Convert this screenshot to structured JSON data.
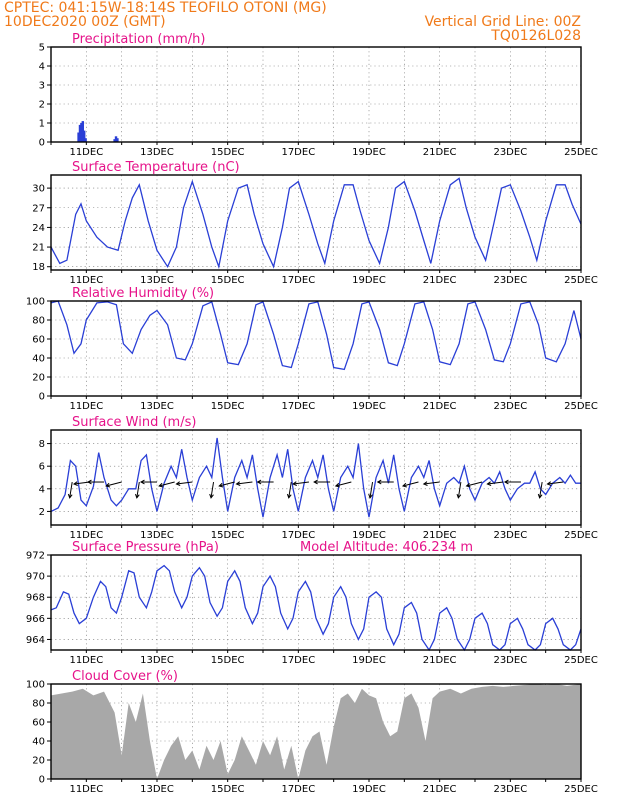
{
  "header": {
    "line1_left": "CPTEC:   041:15W-18:14S   TEOFILO OTONI (MG)",
    "line2_left": "10DEC2020 00Z (GMT)",
    "line2_right": "Vertical Grid Line: 00Z",
    "line3_right": "TQ0126L028"
  },
  "colors": {
    "header": "#f07a1a",
    "title": "#e6138a",
    "series": "#2a3fd6",
    "cloud": "#a8a8a8"
  },
  "x_axis": {
    "ticks": [
      "11DEC",
      "13DEC",
      "15DEC",
      "17DEC",
      "19DEC",
      "21DEC",
      "23DEC",
      "25DEC"
    ],
    "tick_days": [
      11,
      13,
      15,
      17,
      19,
      21,
      23,
      25
    ],
    "range_days": [
      10,
      25
    ]
  },
  "chart_data": [
    {
      "type": "bar",
      "title": "Precipitation (mm/h)",
      "ylim": [
        0,
        5
      ],
      "yticks": [
        0,
        1,
        2,
        3,
        4,
        5
      ],
      "x_days": [
        10.78,
        10.82,
        10.86,
        10.9,
        10.94,
        10.98,
        11.8,
        11.84,
        11.88
      ],
      "values": [
        0.5,
        0.9,
        1.0,
        1.1,
        0.6,
        0.2,
        0.15,
        0.3,
        0.2
      ]
    },
    {
      "type": "line",
      "title": "Surface Temperature (nC)",
      "ylim": [
        17.5,
        32
      ],
      "yticks": [
        18,
        21,
        24,
        27,
        30
      ],
      "x_days": [
        10.0,
        10.25,
        10.45,
        10.7,
        10.85,
        11.0,
        11.3,
        11.6,
        11.9,
        12.1,
        12.3,
        12.5,
        12.75,
        13.0,
        13.3,
        13.55,
        13.75,
        14.0,
        14.3,
        14.55,
        14.75,
        15.0,
        15.3,
        15.55,
        15.75,
        16.0,
        16.3,
        16.55,
        16.75,
        17.0,
        17.3,
        17.55,
        17.75,
        18.0,
        18.3,
        18.55,
        18.75,
        19.0,
        19.3,
        19.55,
        19.75,
        20.0,
        20.3,
        20.55,
        20.75,
        21.0,
        21.3,
        21.55,
        21.75,
        22.0,
        22.3,
        22.55,
        22.75,
        23.0,
        23.3,
        23.55,
        23.75,
        24.0,
        24.3,
        24.55,
        24.75,
        25.0
      ],
      "values": [
        21,
        18.5,
        19,
        26,
        27.6,
        25,
        22.5,
        21,
        20.5,
        25,
        28.5,
        30.5,
        25,
        20.5,
        18,
        21,
        27,
        31,
        26,
        21,
        18,
        25,
        30,
        30.5,
        26,
        21.5,
        18,
        24,
        30,
        31,
        26,
        21.5,
        18.5,
        25,
        30.5,
        30.5,
        26.5,
        22,
        18.5,
        24,
        30,
        31,
        26.5,
        22,
        18.5,
        25,
        30.5,
        31.5,
        27,
        22.5,
        19,
        25,
        30,
        30.5,
        26.5,
        22.5,
        19,
        25,
        30.5,
        30.5,
        27.5,
        24.5
      ]
    },
    {
      "type": "line",
      "title": "Relative Humidity (%)",
      "ylim": [
        0,
        100
      ],
      "yticks": [
        0,
        20,
        40,
        60,
        80,
        100
      ],
      "x_days": [
        10.0,
        10.2,
        10.45,
        10.65,
        10.85,
        11.0,
        11.3,
        11.6,
        11.85,
        12.05,
        12.3,
        12.55,
        12.8,
        13.0,
        13.3,
        13.55,
        13.8,
        14.0,
        14.3,
        14.55,
        14.8,
        15.0,
        15.3,
        15.55,
        15.8,
        16.0,
        16.3,
        16.55,
        16.8,
        17.0,
        17.3,
        17.55,
        17.8,
        18.0,
        18.3,
        18.55,
        18.8,
        19.0,
        19.3,
        19.55,
        19.8,
        20.0,
        20.3,
        20.55,
        20.8,
        21.0,
        21.3,
        21.55,
        21.8,
        22.0,
        22.3,
        22.55,
        22.8,
        23.0,
        23.3,
        23.55,
        23.8,
        24.0,
        24.3,
        24.55,
        24.8,
        25.0
      ],
      "values": [
        98,
        100,
        75,
        45,
        55,
        80,
        98,
        99,
        96,
        55,
        45,
        70,
        85,
        90,
        75,
        40,
        38,
        55,
        95,
        99,
        65,
        35,
        33,
        55,
        96,
        99,
        65,
        32,
        30,
        55,
        97,
        99,
        65,
        30,
        28,
        55,
        97,
        99,
        70,
        35,
        32,
        55,
        97,
        99,
        70,
        36,
        33,
        55,
        97,
        99,
        70,
        38,
        36,
        55,
        97,
        99,
        75,
        40,
        36,
        55,
        90,
        60
      ]
    },
    {
      "type": "line",
      "title": "Surface Wind (m/s)",
      "ylim": [
        0.8,
        9.2
      ],
      "yticks": [
        2,
        4,
        6,
        8
      ],
      "x_days": [
        10.0,
        10.2,
        10.4,
        10.55,
        10.7,
        10.85,
        11.0,
        11.2,
        11.35,
        11.5,
        11.7,
        11.85,
        12.0,
        12.2,
        12.4,
        12.55,
        12.7,
        12.85,
        13.0,
        13.2,
        13.4,
        13.55,
        13.7,
        13.85,
        14.0,
        14.2,
        14.4,
        14.55,
        14.7,
        14.85,
        15.0,
        15.2,
        15.4,
        15.55,
        15.7,
        15.85,
        16.0,
        16.2,
        16.4,
        16.55,
        16.7,
        16.85,
        17.0,
        17.2,
        17.4,
        17.55,
        17.7,
        17.85,
        18.0,
        18.2,
        18.4,
        18.55,
        18.7,
        18.85,
        19.0,
        19.2,
        19.4,
        19.55,
        19.7,
        19.85,
        20.0,
        20.2,
        20.4,
        20.55,
        20.7,
        20.85,
        21.0,
        21.2,
        21.4,
        21.55,
        21.7,
        21.85,
        22.0,
        22.2,
        22.4,
        22.55,
        22.7,
        22.85,
        23.0,
        23.2,
        23.4,
        23.55,
        23.7,
        23.85,
        24.0,
        24.2,
        24.4,
        24.55,
        24.7,
        24.85,
        25.0
      ],
      "values": [
        2,
        2.3,
        3.5,
        6.5,
        6,
        3,
        2.5,
        4.2,
        7.2,
        5,
        3,
        2.5,
        3,
        4,
        4,
        6.5,
        7,
        4,
        2,
        4.5,
        6,
        5,
        7.5,
        5,
        3,
        5,
        6,
        5,
        8.5,
        5,
        2,
        5,
        6.5,
        5,
        7,
        4,
        1.5,
        5,
        7,
        5,
        7.5,
        4,
        2,
        5,
        6.5,
        5,
        7,
        4,
        2,
        5,
        6,
        5,
        8,
        4,
        1.5,
        5,
        6.5,
        4.5,
        7,
        4,
        2,
        5,
        6,
        5,
        6.5,
        4,
        2.5,
        4.5,
        5,
        4.5,
        6,
        4,
        3,
        4.5,
        5,
        4.5,
        5.5,
        4,
        3,
        4,
        4.5,
        4.5,
        5.5,
        4,
        3.5,
        4.5,
        5,
        4.5,
        5.2,
        4.5,
        4.5
      ]
    },
    {
      "type": "line",
      "title": "Surface Pressure (hPa)",
      "annotation": "Model Altitude: 406.234 m",
      "ylim": [
        963,
        972
      ],
      "yticks": [
        964,
        966,
        968,
        970,
        972
      ],
      "x_days": [
        10.0,
        10.15,
        10.35,
        10.5,
        10.65,
        10.8,
        11.0,
        11.2,
        11.4,
        11.55,
        11.7,
        11.85,
        12.0,
        12.2,
        12.35,
        12.5,
        12.7,
        12.85,
        13.0,
        13.2,
        13.35,
        13.5,
        13.7,
        13.85,
        14.0,
        14.2,
        14.35,
        14.5,
        14.7,
        14.85,
        15.0,
        15.2,
        15.35,
        15.5,
        15.7,
        15.85,
        16.0,
        16.2,
        16.35,
        16.5,
        16.7,
        16.85,
        17.0,
        17.2,
        17.35,
        17.5,
        17.7,
        17.85,
        18.0,
        18.2,
        18.35,
        18.5,
        18.7,
        18.85,
        19.0,
        19.2,
        19.35,
        19.5,
        19.7,
        19.85,
        20.0,
        20.2,
        20.35,
        20.5,
        20.7,
        20.85,
        21.0,
        21.2,
        21.35,
        21.5,
        21.7,
        21.85,
        22.0,
        22.2,
        22.35,
        22.5,
        22.7,
        22.85,
        23.0,
        23.2,
        23.35,
        23.5,
        23.7,
        23.85,
        24.0,
        24.2,
        24.35,
        24.5,
        24.7,
        24.85,
        25.0
      ],
      "values": [
        966.8,
        967,
        968.5,
        968.3,
        966.5,
        965.5,
        966,
        968,
        969.5,
        969,
        967,
        966.5,
        968,
        970.5,
        970.3,
        968,
        967,
        968.5,
        970.5,
        971,
        970.5,
        968.5,
        967,
        968,
        970,
        970.8,
        970,
        967.5,
        966.2,
        967,
        969.5,
        970.5,
        969.5,
        967,
        965.5,
        966.5,
        969,
        970,
        969,
        966.5,
        965,
        966,
        968.5,
        969.5,
        968.5,
        966,
        964.5,
        965.5,
        968,
        969,
        968,
        965.5,
        964,
        965,
        968,
        968.5,
        968,
        965,
        963.5,
        964.5,
        967,
        967.5,
        966.5,
        964,
        963,
        964,
        966.5,
        967,
        966,
        964,
        963,
        964,
        966,
        966.5,
        965.5,
        963.5,
        963,
        963.5,
        965.5,
        966,
        965,
        963.5,
        963,
        963.5,
        965.5,
        966,
        965,
        963.5,
        963,
        963.5,
        965
      ]
    },
    {
      "type": "area",
      "title": "Cloud Cover (%)",
      "ylim": [
        0,
        100
      ],
      "yticks": [
        0,
        20,
        40,
        60,
        80,
        100
      ],
      "x_days": [
        10.0,
        10.3,
        10.6,
        10.9,
        11.2,
        11.5,
        11.8,
        12.0,
        12.2,
        12.4,
        12.6,
        12.8,
        13.0,
        13.2,
        13.4,
        13.6,
        13.8,
        14.0,
        14.2,
        14.4,
        14.6,
        14.8,
        15.0,
        15.2,
        15.4,
        15.6,
        15.8,
        16.0,
        16.2,
        16.4,
        16.6,
        16.8,
        17.0,
        17.2,
        17.4,
        17.6,
        17.8,
        18.0,
        18.2,
        18.4,
        18.6,
        18.8,
        19.0,
        19.2,
        19.4,
        19.6,
        19.8,
        20.0,
        20.2,
        20.4,
        20.6,
        20.8,
        21.0,
        21.3,
        21.6,
        21.9,
        22.2,
        22.5,
        22.8,
        23.1,
        23.4,
        23.7,
        24.0,
        24.3,
        24.6,
        25.0
      ],
      "values": [
        88,
        90,
        92,
        95,
        88,
        92,
        70,
        25,
        80,
        60,
        90,
        40,
        0,
        20,
        35,
        45,
        20,
        30,
        10,
        35,
        20,
        40,
        5,
        20,
        45,
        30,
        15,
        40,
        25,
        45,
        10,
        35,
        0,
        30,
        45,
        50,
        15,
        55,
        85,
        90,
        80,
        95,
        88,
        85,
        60,
        45,
        50,
        85,
        90,
        75,
        40,
        85,
        92,
        95,
        90,
        95,
        97,
        98,
        97,
        98,
        99,
        100,
        99,
        100,
        98,
        100
      ]
    }
  ]
}
